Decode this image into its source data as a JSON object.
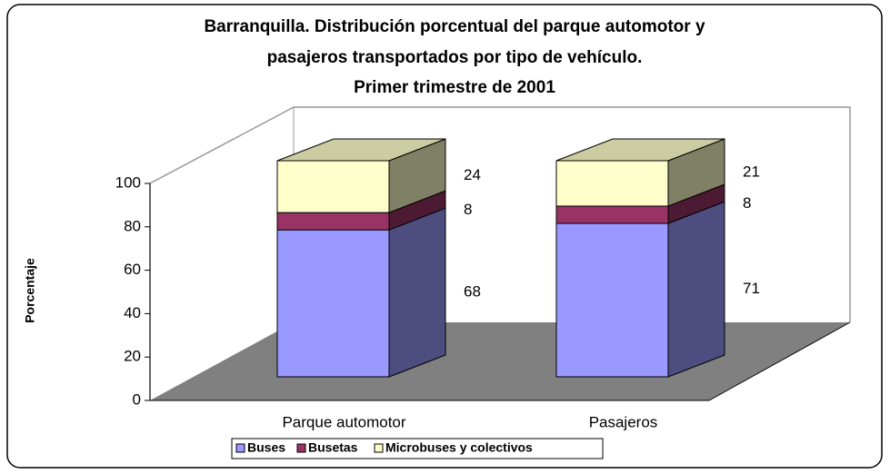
{
  "chart_data": {
    "type": "bar3d_stacked",
    "title": [
      "Barranquilla.  Distribución porcentual del parque automotor y",
      "pasajeros transportados por tipo de vehículo.",
      "Primer trimestre de 2001"
    ],
    "y_label": "Porcentaje",
    "categories": [
      "Parque automotor",
      "Pasajeros"
    ],
    "series": [
      {
        "name": "Buses",
        "color": "#9999ff",
        "values": [
          68,
          71
        ]
      },
      {
        "name": "Busetas",
        "color": "#993366",
        "values": [
          8,
          8
        ]
      },
      {
        "name": "Microbuses y colectivos",
        "color": "#ffffcc",
        "values": [
          24,
          21
        ]
      }
    ],
    "ylim": [
      0,
      100
    ],
    "yticks": [
      0,
      20,
      40,
      60,
      80,
      100
    ],
    "legend": "bottom"
  }
}
